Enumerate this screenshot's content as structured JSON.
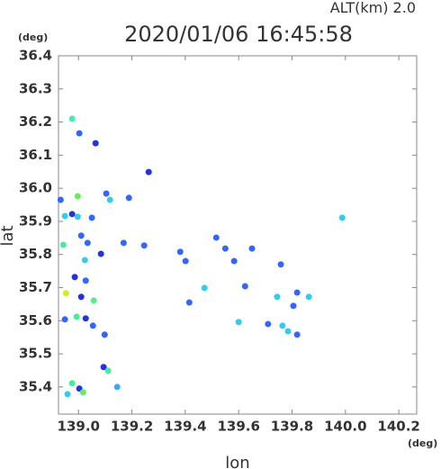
{
  "chart_data": {
    "type": "scatter",
    "title": "2020/01/06 16:45:58",
    "subtitle": "ALT(km)  2.0",
    "y_unit": "(deg)",
    "x_unit": "(deg)",
    "xlabel": "lon",
    "ylabel": "lat",
    "xlim": [
      138.925,
      140.267
    ],
    "ylim": [
      35.318,
      36.4
    ],
    "xticks": [
      {
        "value": 139.0,
        "label": "139.0"
      },
      139.2,
      139.4,
      139.6,
      139.8,
      {
        "value": 140.0,
        "label": "140.0"
      },
      140.2
    ],
    "yticks": [
      35.4,
      35.5,
      35.6,
      35.7,
      35.8,
      35.9,
      {
        "value": 36.0,
        "label": "36.0"
      },
      36.1,
      36.2,
      36.3,
      36.4
    ],
    "x": [
      138.976,
      139.003,
      139.064,
      139.263,
      138.933,
      138.997,
      139.104,
      139.118,
      139.189,
      138.976,
      138.949,
      138.997,
      139.05,
      139.01,
      139.034,
      139.084,
      138.943,
      139.024,
      139.169,
      139.246,
      139.381,
      139.401,
      139.516,
      139.55,
      139.65,
      139.583,
      139.758,
      139.988,
      138.986,
      138.953,
      139.027,
      139.057,
      139.01,
      139.472,
      139.415,
      139.624,
      139.744,
      139.819,
      139.863,
      139.805,
      138.993,
      139.027,
      139.054,
      139.098,
      138.949,
      139.6,
      139.71,
      139.764,
      139.785,
      139.819,
      139.094,
      139.111,
      138.976,
      139.003,
      139.017,
      139.145,
      138.959
    ],
    "y": [
      36.21,
      36.166,
      36.136,
      36.049,
      35.965,
      35.976,
      35.984,
      35.965,
      35.971,
      35.922,
      35.916,
      35.914,
      35.911,
      35.857,
      35.835,
      35.802,
      35.829,
      35.783,
      35.835,
      35.827,
      35.808,
      35.78,
      35.851,
      35.818,
      35.818,
      35.78,
      35.77,
      35.911,
      35.732,
      35.683,
      35.721,
      35.661,
      35.672,
      35.699,
      35.655,
      35.704,
      35.672,
      35.685,
      35.672,
      35.645,
      35.612,
      35.607,
      35.585,
      35.558,
      35.604,
      35.596,
      35.59,
      35.585,
      35.568,
      35.558,
      35.46,
      35.449,
      35.411,
      35.395,
      35.384,
      35.4,
      35.378
    ],
    "colors": [
      "#44eeaa",
      "#3366ff",
      "#2233dd",
      "#2233dd",
      "#3366ff",
      "#66ee55",
      "#3366ff",
      "#33ccee",
      "#3366ff",
      "#2233dd",
      "#33ccee",
      "#33ccee",
      "#3366ff",
      "#3366ff",
      "#3366ff",
      "#2233dd",
      "#44ee99",
      "#33ccee",
      "#3366ff",
      "#3366ff",
      "#3366ff",
      "#3366ff",
      "#3366ff",
      "#3366ff",
      "#3366ff",
      "#3366ff",
      "#3366ff",
      "#33ccee",
      "#2233dd",
      "#ccee33",
      "#3366ff",
      "#55ee88",
      "#2233dd",
      "#33ccee",
      "#3366ff",
      "#3366ff",
      "#33ccee",
      "#3366ff",
      "#33ccee",
      "#3366ff",
      "#44ee99",
      "#2233dd",
      "#3366ff",
      "#3366ff",
      "#3366ff",
      "#33ccee",
      "#3366ff",
      "#33ccee",
      "#33ccee",
      "#3366ff",
      "#2233dd",
      "#44ee99",
      "#44ee99",
      "#2233dd",
      "#66ee55",
      "#33aaff",
      "#33ccee"
    ]
  }
}
